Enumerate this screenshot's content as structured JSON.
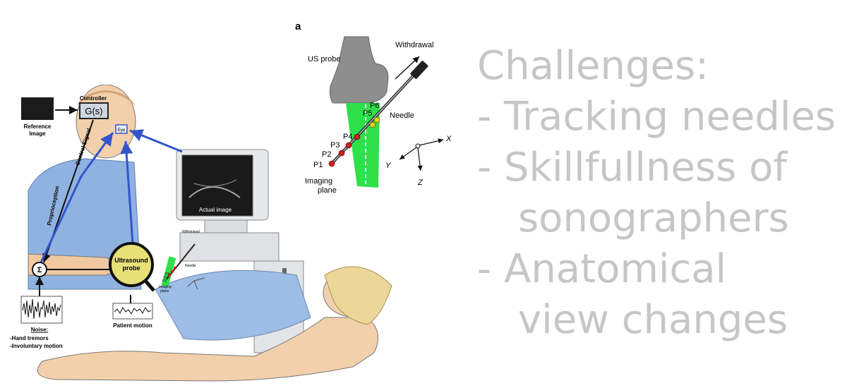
{
  "slide": {
    "challenges_title": "Challenges:",
    "items": [
      "- Tracking needles",
      "- Skillfullness of",
      "sonographers",
      "- Anatomical",
      "view changes"
    ]
  },
  "figure_a": {
    "panel_label": "a",
    "probe_label": "US probe",
    "withdrawal_label": "Withdrawal",
    "needle_label": "Needle",
    "points": [
      "P1",
      "P2",
      "P3",
      "P4",
      "P5",
      "P6"
    ],
    "imaging_plane_label": [
      "Imaging",
      "plane"
    ],
    "axes": [
      "X",
      "Y",
      "Z"
    ]
  },
  "figure_b": {
    "reference_image_label": [
      "Reference",
      "Image"
    ],
    "controller_label": "Controller",
    "controller_tf": "G(s)",
    "eye_label": "Eye",
    "control_signal_label": "Control Signal",
    "proprioception_label": "Proprioception",
    "actual_image_label": "Actual image",
    "ultrasound_probe_label": [
      "Ultrasound",
      "probe"
    ],
    "sum_symbol": "Σ",
    "noise_title": "Noise:",
    "noise_items": [
      "-Hand tremors",
      "-Involuntary motion"
    ],
    "patient_motion_label": "Patient motion",
    "inset_labels": {
      "withdrawal": "Withdrawal",
      "needle": "Needle",
      "imaging": "Imaging",
      "plane": "plane",
      "points": [
        "P1",
        "P2",
        "P3",
        "P4",
        "P5",
        "P6"
      ]
    }
  },
  "colors": {
    "slide_text": "#c6c6c6",
    "feedback_arrow": "#3355cc",
    "imaging_plane": "#2ee04a",
    "needle_points": "#d62020",
    "needle_tip": "#e8d020",
    "probe_gray": "#8c8c8c",
    "skin": "#f0c9a0",
    "shirt": "#8fb2e0"
  }
}
